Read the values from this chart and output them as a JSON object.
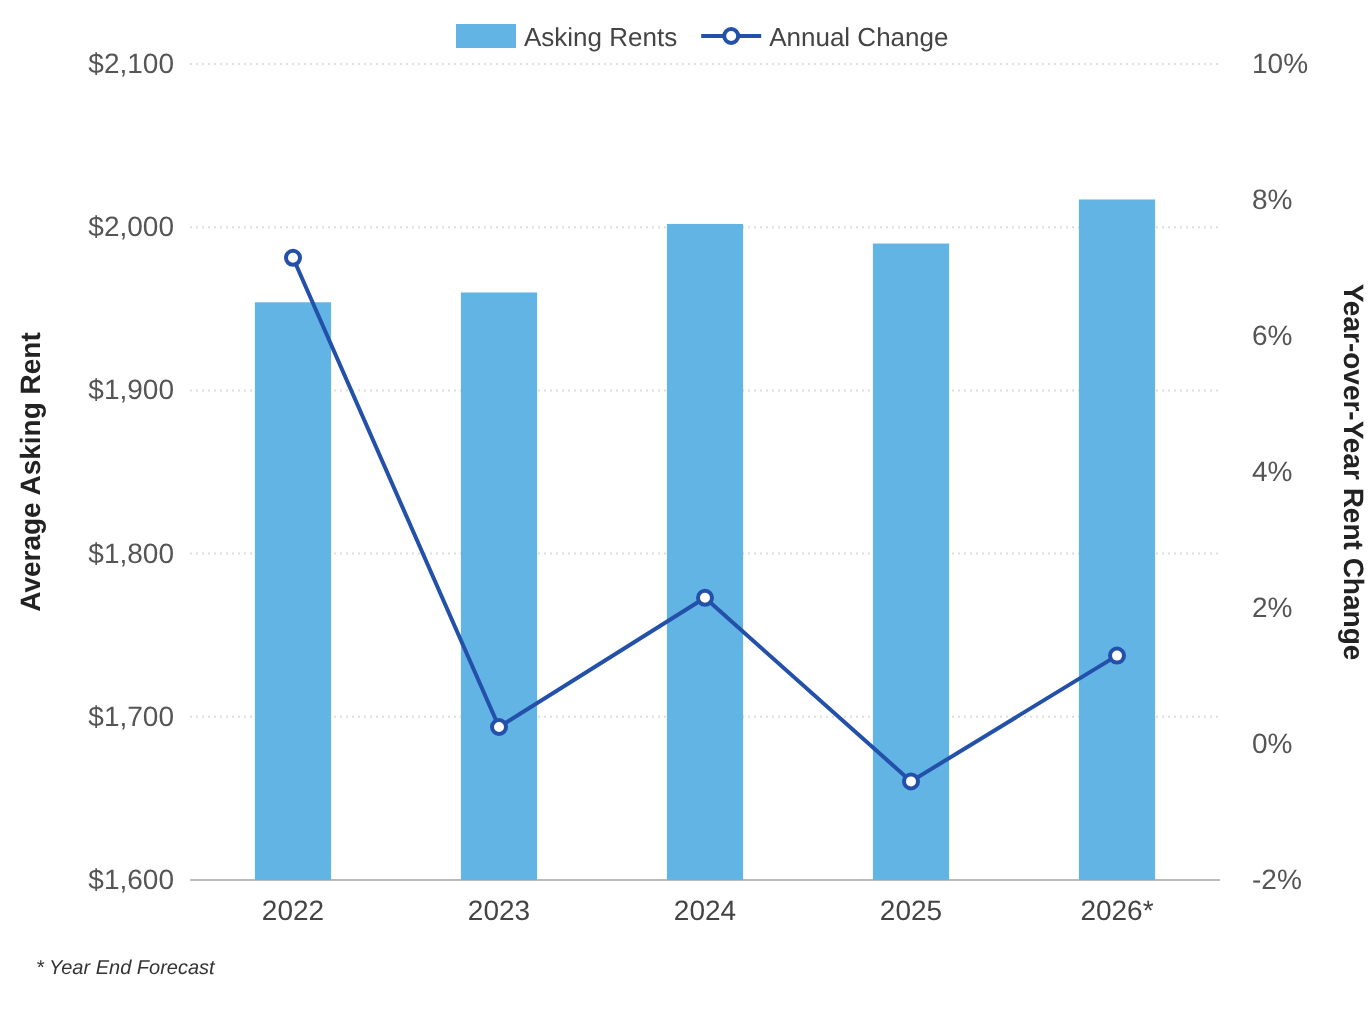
{
  "chart_data": {
    "type": "bar",
    "categories": [
      "2022",
      "2023",
      "2024",
      "2025",
      "2026*"
    ],
    "series": [
      {
        "name": "Asking Rents",
        "color": "#62b4e5",
        "values": [
          1954,
          1960,
          2002,
          1990,
          2017
        ]
      },
      {
        "name": "Annual Change",
        "type": "line",
        "axis": "y2",
        "color": "#2350a8",
        "marker": "circle",
        "values": [
          7.15,
          0.25,
          2.15,
          -0.55,
          1.3
        ]
      }
    ],
    "ylabel": "Average Asking Rent",
    "y2label": "Year-over-Year Rent Change",
    "ylim": [
      1600,
      2100
    ],
    "yticks": [
      {
        "value": 1600,
        "label": "$1,600"
      },
      {
        "value": 1700,
        "label": "$1,700"
      },
      {
        "value": 1800,
        "label": "$1,800"
      },
      {
        "value": 1900,
        "label": "$1,900"
      },
      {
        "value": 2000,
        "label": "$2,000"
      },
      {
        "value": 2100,
        "label": "$2,100"
      }
    ],
    "y2lim": [
      -2,
      10
    ],
    "y2ticks": [
      {
        "value": -2,
        "label": "-2%"
      },
      {
        "value": 0,
        "label": "0%"
      },
      {
        "value": 2,
        "label": "2%"
      },
      {
        "value": 4,
        "label": "4%"
      },
      {
        "value": 6,
        "label": "6%"
      },
      {
        "value": 8,
        "label": "8%"
      },
      {
        "value": 10,
        "label": "10%"
      }
    ],
    "grid": "y",
    "legend": "top",
    "annotations": [
      "* Year End Forecast"
    ]
  }
}
